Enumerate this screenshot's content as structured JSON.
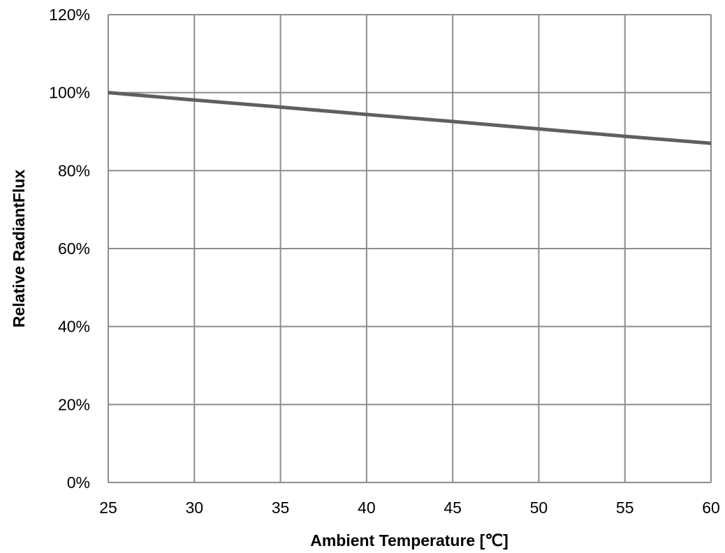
{
  "chart_data": {
    "type": "line",
    "title": "",
    "xlabel": "Ambient Temperature [℃]",
    "ylabel": "Relative RadiantFlux",
    "xlim": [
      25,
      60
    ],
    "ylim": [
      0,
      1.2
    ],
    "x_ticks": [
      25,
      30,
      35,
      40,
      45,
      50,
      55,
      60
    ],
    "x_tick_labels": [
      "25",
      "30",
      "35",
      "40",
      "45",
      "50",
      "55",
      "60"
    ],
    "y_ticks": [
      0,
      0.2,
      0.4,
      0.6,
      0.8,
      1.0,
      1.2
    ],
    "y_tick_labels": [
      "0%",
      "20%",
      "40%",
      "60%",
      "80%",
      "100%",
      "120%"
    ],
    "grid": true,
    "series": [
      {
        "x": [
          25,
          30,
          35,
          40,
          45,
          50,
          55,
          60
        ],
        "y": [
          1.0,
          0.981,
          0.963,
          0.944,
          0.926,
          0.907,
          0.888,
          0.87
        ],
        "color": "#5f5f5f"
      }
    ],
    "colors": {
      "grid": "#8c8c8c",
      "line": "#5f5f5f",
      "text": "#000000"
    }
  }
}
